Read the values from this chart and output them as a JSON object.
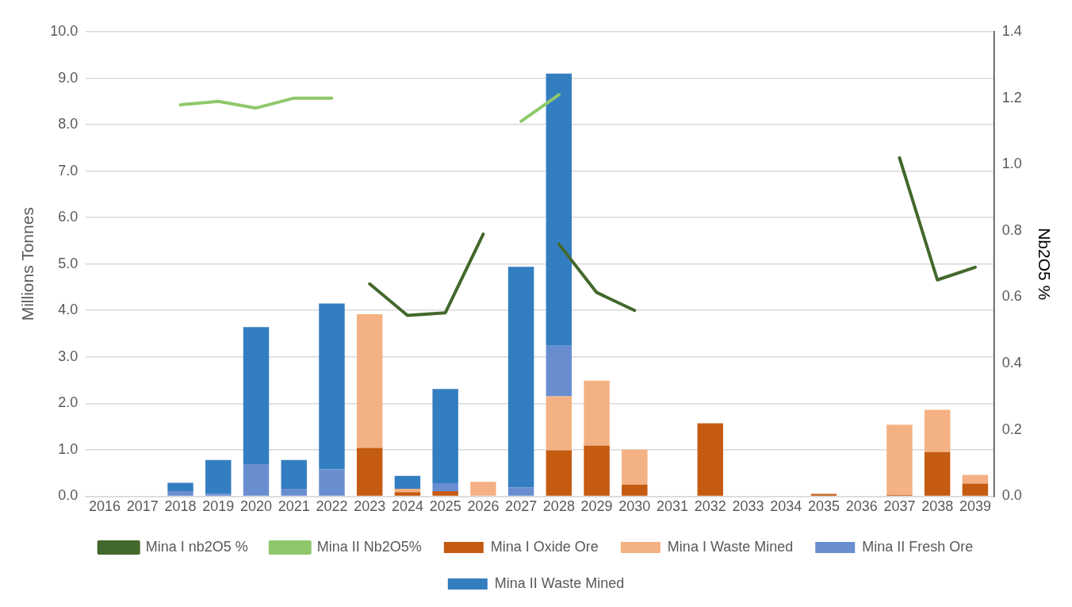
{
  "chart_data": {
    "type": "bar",
    "stacked": true,
    "ylabel": "Millions Tonnes",
    "y2label": "Nb2O5 %",
    "categories": [
      "2016",
      "2017",
      "2018",
      "2019",
      "2020",
      "2021",
      "2022",
      "2023",
      "2024",
      "2025",
      "2026",
      "2027",
      "2028",
      "2029",
      "2030",
      "2031",
      "2032",
      "2033",
      "2034",
      "2035",
      "2036",
      "2037",
      "2038",
      "2039"
    ],
    "series": [
      {
        "name": "Mina I Oxide Ore",
        "color": "#c55a11",
        "values": [
          null,
          null,
          null,
          null,
          null,
          null,
          null,
          1.04,
          0.09,
          0.11,
          null,
          null,
          0.99,
          1.09,
          0.25,
          null,
          1.57,
          null,
          null,
          0.05,
          null,
          0.03,
          0.95,
          0.27
        ]
      },
      {
        "name": "Mina I Waste Mined",
        "color": "#f4b183",
        "values": [
          null,
          null,
          null,
          null,
          null,
          null,
          null,
          2.88,
          0.07,
          null,
          0.31,
          null,
          1.16,
          1.4,
          0.75,
          null,
          null,
          null,
          null,
          null,
          null,
          1.51,
          0.91,
          0.19
        ]
      },
      {
        "name": "Mina II Fresh Ore",
        "color": "#698ed0",
        "values": [
          null,
          null,
          0.11,
          0.05,
          0.69,
          0.16,
          0.58,
          null,
          null,
          0.17,
          null,
          0.19,
          1.09,
          null,
          null,
          null,
          null,
          null,
          null,
          null,
          null,
          null,
          null,
          null
        ]
      },
      {
        "name": "Mina II Waste Mined",
        "color": "#337dc1",
        "values": [
          null,
          null,
          0.18,
          0.73,
          2.95,
          0.62,
          3.57,
          null,
          0.28,
          2.03,
          null,
          4.75,
          5.86,
          null,
          null,
          null,
          null,
          null,
          null,
          null,
          null,
          null,
          null,
          null
        ]
      },
      {
        "name": "Mina I nb2O5 %",
        "type": "line",
        "axis": "y2",
        "color": "#43682b",
        "values": [
          null,
          null,
          null,
          null,
          null,
          null,
          null,
          0.64,
          0.545,
          0.553,
          0.79,
          null,
          0.76,
          0.614,
          0.56,
          null,
          null,
          null,
          null,
          null,
          null,
          1.02,
          0.652,
          0.69
        ]
      },
      {
        "name": "Mina II Nb2O5%",
        "type": "line",
        "axis": "y2",
        "color": "#8fc86b",
        "values": [
          null,
          null,
          1.18,
          1.19,
          1.17,
          1.2,
          1.2,
          null,
          null,
          null,
          null,
          1.13,
          1.21,
          null,
          null,
          null,
          null,
          null,
          null,
          null,
          null,
          null,
          null,
          null
        ]
      }
    ],
    "ylim": [
      0,
      10
    ],
    "yticks": [
      {
        "value": 0,
        "label": "0.0"
      },
      {
        "value": 1,
        "label": "1.0"
      },
      {
        "value": 2,
        "label": "2.0"
      },
      {
        "value": 3,
        "label": "3.0"
      },
      {
        "value": 4,
        "label": "4.0"
      },
      {
        "value": 5,
        "label": "5.0"
      },
      {
        "value": 6,
        "label": "6.0"
      },
      {
        "value": 7,
        "label": "7.0"
      },
      {
        "value": 8,
        "label": "8.0"
      },
      {
        "value": 9,
        "label": "9.0"
      },
      {
        "value": 10,
        "label": "10.0"
      }
    ],
    "y2lim": [
      0,
      1.4
    ],
    "y2ticks": [
      {
        "value": 0,
        "label": "0.0"
      },
      {
        "value": 0.2,
        "label": "0.2"
      },
      {
        "value": 0.4,
        "label": "0.4"
      },
      {
        "value": 0.6,
        "label": "0.6"
      },
      {
        "value": 0.8,
        "label": "0.8"
      },
      {
        "value": 1,
        "label": "1.0"
      },
      {
        "value": 1.2,
        "label": "1.2"
      },
      {
        "value": 1.4,
        "label": "1.4"
      }
    ],
    "grid": "y",
    "legend": "bottom",
    "marker": "none",
    "line_style": "solid"
  }
}
